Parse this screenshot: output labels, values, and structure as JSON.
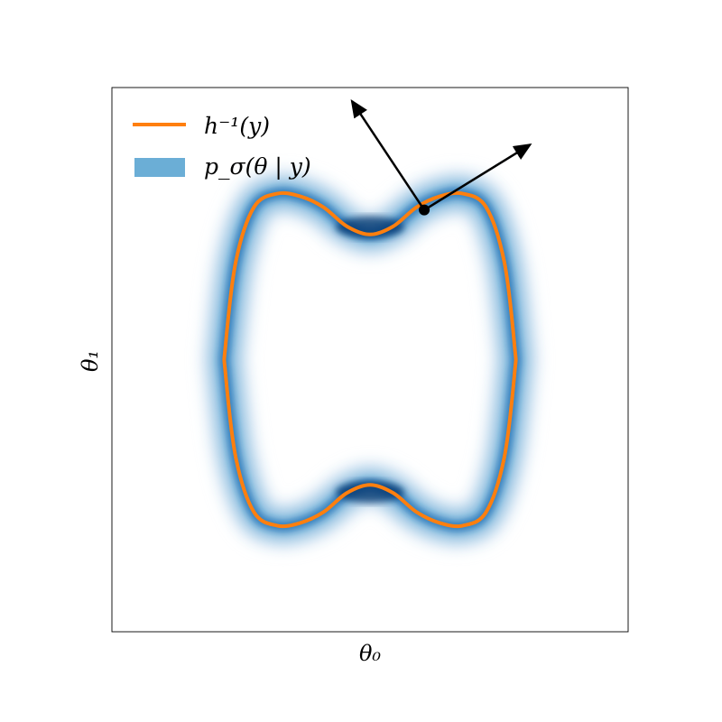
{
  "chart_data": {
    "type": "line",
    "title": "",
    "xlabel": "θ₀",
    "ylabel": "θ₁",
    "xlim": [
      -1,
      1
    ],
    "ylim": [
      -1,
      1
    ],
    "grid": false,
    "ticks": false,
    "legend": {
      "placement": "top-left",
      "entries": [
        {
          "label": "h⁻¹(y)",
          "kind": "line",
          "color": "#ff7f0e"
        },
        {
          "label": "p_σ(θ | y)",
          "kind": "patch",
          "color": "#6baed6"
        }
      ]
    },
    "series": [
      {
        "name": "h⁻¹(y)",
        "kind": "closed_curve",
        "color": "#ff7f0e",
        "x": [
          0.0,
          0.09,
          0.18,
          0.27,
          0.36,
          0.45,
          0.52,
          0.56,
          0.56,
          0.52,
          0.45,
          0.36,
          0.27,
          0.18,
          0.09,
          0.0,
          -0.09,
          -0.18,
          -0.27,
          -0.36,
          -0.45,
          -0.52,
          -0.56,
          -0.56,
          -0.52,
          -0.45,
          -0.36,
          -0.27,
          -0.18,
          -0.09,
          0.0
        ],
        "y": [
          0.46,
          0.49,
          0.56,
          0.6,
          0.61,
          0.56,
          0.36,
          0.05,
          -0.05,
          -0.36,
          -0.56,
          -0.61,
          -0.6,
          -0.56,
          -0.49,
          -0.46,
          -0.49,
          -0.56,
          -0.6,
          -0.61,
          -0.56,
          -0.36,
          -0.05,
          0.05,
          0.36,
          0.56,
          0.61,
          0.6,
          0.56,
          0.49,
          0.46
        ]
      },
      {
        "name": "p_σ(θ | y)",
        "kind": "density_band",
        "colormap": [
          "#f7fbff",
          "#c6dbef",
          "#6baed6",
          "#2171b5",
          "#08306b"
        ]
      }
    ],
    "annotations": [
      {
        "kind": "point",
        "x": 0.21,
        "y": 0.55,
        "color": "#000000"
      },
      {
        "kind": "arrow",
        "from": [
          0.21,
          0.55
        ],
        "to": [
          -0.07,
          0.95
        ],
        "color": "#000000"
      },
      {
        "kind": "arrow",
        "from": [
          0.21,
          0.55
        ],
        "to": [
          0.62,
          0.79
        ],
        "color": "#000000"
      }
    ]
  }
}
